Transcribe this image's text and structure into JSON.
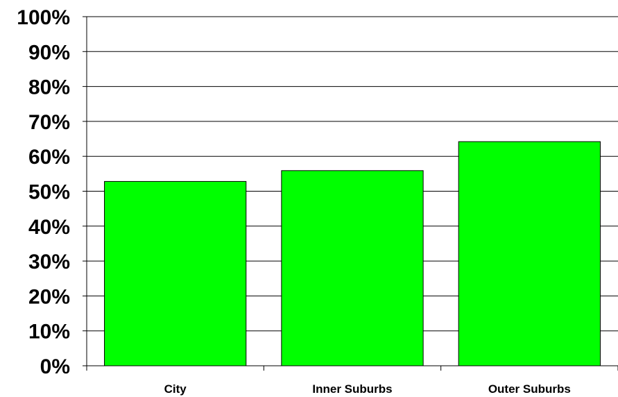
{
  "chart_data": {
    "type": "bar",
    "categories": [
      "City",
      "Inner Suburbs",
      "Outer Suburbs"
    ],
    "values": [
      52.8,
      55.9,
      64.2
    ],
    "value_unit": "%",
    "ylim": [
      0,
      100
    ],
    "yticks": [
      "0%",
      "10%",
      "20%",
      "30%",
      "40%",
      "50%",
      "60%",
      "70%",
      "80%",
      "90%",
      "100%"
    ],
    "ytick_values": [
      0,
      10,
      20,
      30,
      40,
      50,
      60,
      70,
      80,
      90,
      100
    ],
    "grid": true,
    "legend": "none",
    "bar_color": "#00ff00",
    "bar_edge_color": "#000000"
  }
}
